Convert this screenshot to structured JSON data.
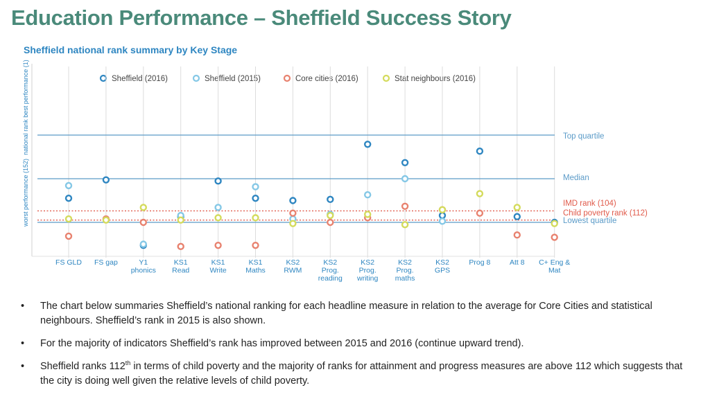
{
  "slide": {
    "title": "Education Performance – Sheffield Success Story"
  },
  "chart_data": {
    "type": "scatter",
    "title": "Sheffield national rank summary by Key Stage",
    "y_axis": {
      "label_top": "best performance (1)",
      "label_middle": "national rank",
      "label_bottom": "worst performance (152)",
      "ylim": [
        1,
        152
      ]
    },
    "categories": [
      [
        "FS GLD"
      ],
      [
        "FS gap"
      ],
      [
        "Y1",
        "phonics"
      ],
      [
        "KS1",
        "Read"
      ],
      [
        "KS1",
        "Write"
      ],
      [
        "KS1",
        "Maths"
      ],
      [
        "KS2",
        "RWM"
      ],
      [
        "KS2",
        "Prog.",
        "reading"
      ],
      [
        "KS2",
        "Prog.",
        "writing"
      ],
      [
        "KS2",
        "Prog.",
        "maths"
      ],
      [
        "KS2",
        "GPS"
      ],
      [
        "Prog 8"
      ],
      [
        "Att 8"
      ],
      [
        "C+ Eng &",
        "Mat"
      ]
    ],
    "series": [
      {
        "name": "Sheffield (2016)",
        "color": "#2e86c1",
        "values": [
          93,
          77,
          134,
          109,
          78,
          93,
          95,
          94,
          46,
          62,
          108,
          52,
          109,
          114
        ]
      },
      {
        "name": "Sheffield (2015)",
        "color": "#85c8e6",
        "values": [
          82,
          null,
          133,
          108,
          101,
          83,
          111,
          107,
          90,
          76,
          113,
          null,
          null,
          null
        ]
      },
      {
        "name": "Core cities (2016)",
        "color": "#e8826f",
        "values": [
          126,
          111,
          114,
          135,
          134,
          134,
          106,
          114,
          110,
          100,
          103,
          106,
          125,
          127
        ]
      },
      {
        "name": "Stat neighbours (2016)",
        "color": "#d4db5c",
        "values": [
          111,
          112,
          101,
          112,
          110,
          110,
          115,
          108,
          107,
          116,
          103,
          89,
          101,
          115
        ]
      }
    ],
    "reference_lines": [
      {
        "label": "Top quartile",
        "value": 38,
        "color": "#5b9bc8",
        "style": "solid"
      },
      {
        "label": "Median",
        "value": 76,
        "color": "#5b9bc8",
        "style": "solid"
      },
      {
        "label": "IMD rank (104)",
        "value": 104,
        "color": "#e05a4a",
        "style": "dotted"
      },
      {
        "label": "Child poverty rank (112)",
        "value": 112,
        "color": "#e05a4a",
        "style": "dotted"
      },
      {
        "label": "Lowest quartile",
        "value": 114,
        "color": "#5b9bc8",
        "style": "solid"
      }
    ]
  },
  "bullets": [
    {
      "text": "The chart below summaries Sheffield’s national ranking for each headline measure in relation to the average for Core Cities and statistical neighbours. Sheffield’s rank in 2015 is also shown."
    },
    {
      "text": "For the majority of indicators Sheffield’s rank has improved between 2015 and 2016 (continue upward trend)."
    },
    {
      "text_before": "Sheffield ranks 112",
      "superscript": "th",
      "text_after": " in terms of child poverty and the majority of ranks for attainment and progress measures are above 112 which suggests that the city is doing well given the relative levels of child poverty."
    }
  ]
}
